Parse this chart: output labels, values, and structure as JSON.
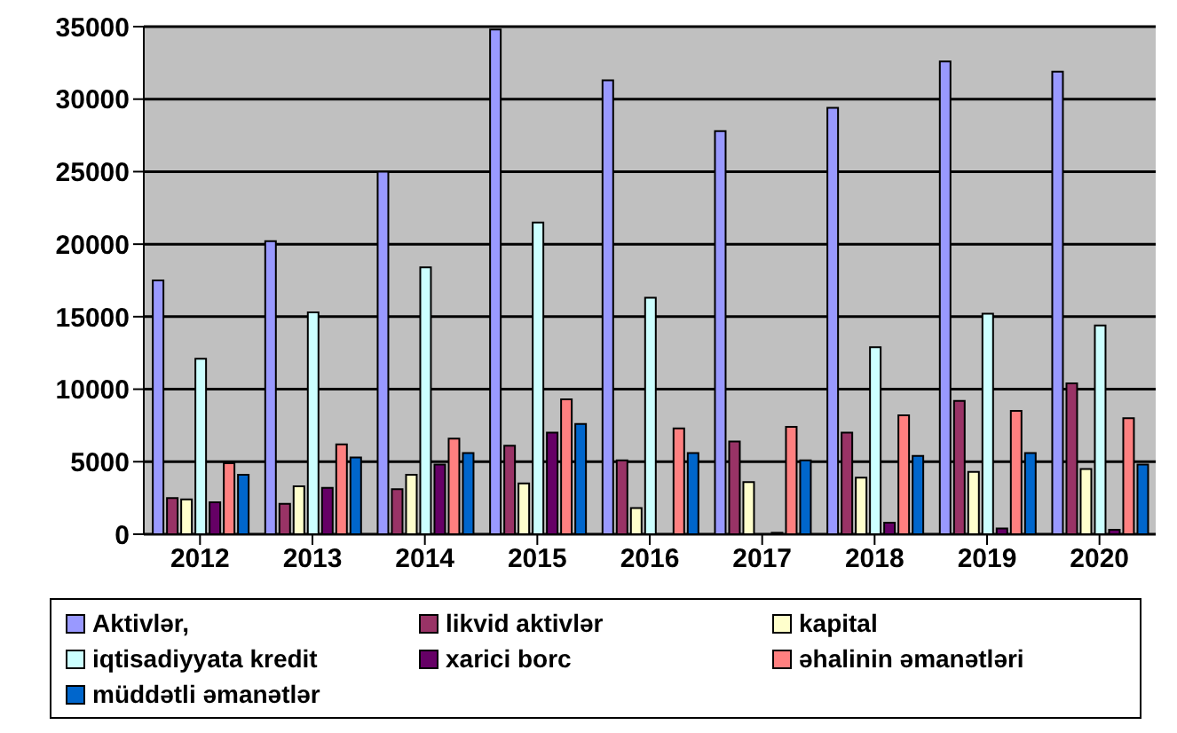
{
  "chart_data": {
    "type": "bar",
    "categories": [
      "2012",
      "2013",
      "2014",
      "2015",
      "2016",
      "2017",
      "2018",
      "2019",
      "2020"
    ],
    "series": [
      {
        "name": "Aktivlər,",
        "color": "#9999ff",
        "values": [
          17500,
          20200,
          25000,
          34800,
          31300,
          27800,
          29400,
          32600,
          31900
        ]
      },
      {
        "name": "likvid aktivlər",
        "color": "#993366",
        "values": [
          2500,
          2100,
          3100,
          6100,
          5100,
          6400,
          7000,
          9200,
          10400
        ]
      },
      {
        "name": "kapital",
        "color": "#ffffcc",
        "values": [
          2400,
          3300,
          4100,
          3500,
          1800,
          3600,
          3900,
          4300,
          4500
        ]
      },
      {
        "name": "iqtisadiyyata kredit",
        "color": "#ccffff",
        "values": [
          12100,
          15300,
          18400,
          21500,
          16300,
          null,
          12900,
          15200,
          14400
        ]
      },
      {
        "name": "xarici borc",
        "color": "#660066",
        "values": [
          2200,
          3200,
          4800,
          7000,
          null,
          100,
          800,
          400,
          300
        ]
      },
      {
        "name": "əhalinin əmanətləri",
        "color": "#ff8080",
        "values": [
          4900,
          6200,
          6600,
          9300,
          7300,
          7400,
          8200,
          8500,
          8000
        ]
      },
      {
        "name": "müddətli əmanətlər",
        "color": "#0066cc",
        "values": [
          4100,
          5300,
          5600,
          7600,
          5600,
          5100,
          5400,
          5600,
          4800
        ]
      }
    ],
    "ylim": [
      0,
      35000
    ],
    "yticks": [
      0,
      5000,
      10000,
      15000,
      20000,
      25000,
      30000,
      35000
    ],
    "grid": "y",
    "legend": "bottom"
  }
}
